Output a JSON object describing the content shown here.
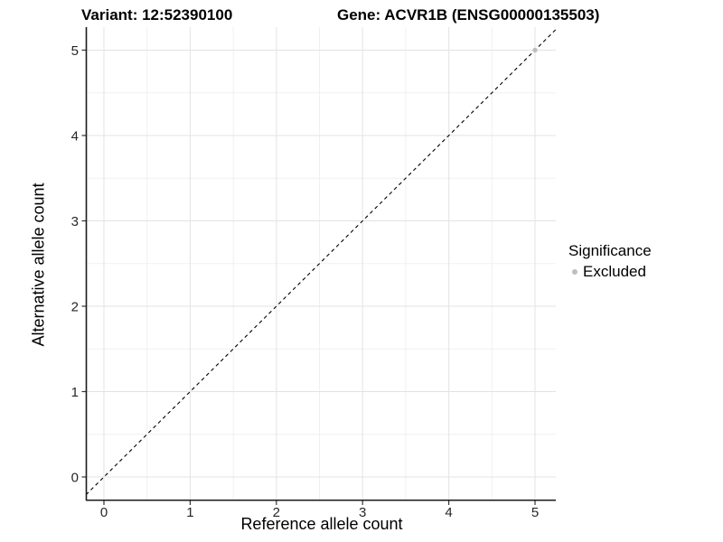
{
  "header": {
    "variant_title": "Variant: 12:52390100",
    "gene_title": "Gene: ACVR1B (ENSG00000135503)"
  },
  "legend": {
    "title": "Significance",
    "items": [
      {
        "label": "Excluded",
        "color": "#bebebe"
      }
    ]
  },
  "chart_data": {
    "type": "scatter",
    "title": "Variant: 12:52390100   Gene: ACVR1B (ENSG00000135503)",
    "xlabel": "Reference allele count",
    "ylabel": "Alternative allele count",
    "xlim": [
      -0.2,
      5.25
    ],
    "ylim": [
      -0.27,
      5.27
    ],
    "x_ticks": [
      0,
      1,
      2,
      3,
      4,
      5
    ],
    "y_ticks": [
      0,
      1,
      2,
      3,
      4,
      5
    ],
    "grid": "major+minor",
    "legend_position": "right",
    "series": [
      {
        "name": "Excluded",
        "color": "#bebebe",
        "points": [
          {
            "x": 5,
            "y": 5
          }
        ]
      }
    ],
    "reference_line": {
      "slope": 1,
      "intercept": 0,
      "style": "dashed",
      "color": "#000000"
    },
    "colors": {
      "panel_background": "#ffffff",
      "grid_major": "#e3e3e3",
      "grid_minor": "#f0f0f0",
      "axis_line": "#1a1a1a",
      "tick_mark": "#333333",
      "tick_label": "#262626"
    }
  }
}
